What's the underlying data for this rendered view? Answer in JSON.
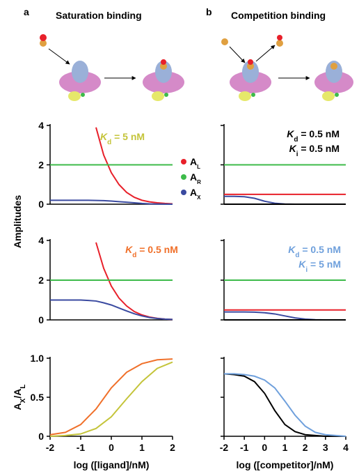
{
  "panels": [
    {
      "letter": "a",
      "title": "Saturation binding"
    },
    {
      "letter": "b",
      "title": "Competition binding"
    }
  ],
  "chart_data": [
    {
      "type": "line",
      "ylabel": "Amplitudes",
      "legend": "right",
      "xlim": [
        -2,
        2
      ],
      "ylim": [
        0,
        4
      ],
      "yticks": [
        0,
        2,
        4
      ],
      "show_ytick_labels": true,
      "x": [
        -2,
        -1.75,
        -1.5,
        -1.25,
        -1,
        -0.75,
        -0.5,
        -0.25,
        0,
        0.25,
        0.5,
        0.75,
        1,
        1.25,
        1.5,
        1.75,
        2
      ],
      "series": [
        {
          "name": "A",
          "sub": "L",
          "color": "#e8202a",
          "values": [
            null,
            null,
            null,
            null,
            null,
            null,
            3.9,
            2.5,
            1.6,
            1.0,
            0.6,
            0.35,
            0.2,
            0.12,
            0.07,
            0.04,
            0.02
          ]
        },
        {
          "name": "A",
          "sub": "R",
          "color": "#3dbb4a",
          "values": [
            2,
            2,
            2,
            2,
            2,
            2,
            2,
            2,
            2,
            2,
            2,
            2,
            2,
            2,
            2,
            2,
            2
          ]
        },
        {
          "name": "A",
          "sub": "X",
          "color": "#3a4aa0",
          "values": [
            0.2,
            0.2,
            0.2,
            0.2,
            0.2,
            0.2,
            0.19,
            0.18,
            0.16,
            0.13,
            0.1,
            0.07,
            0.04,
            0.02,
            0.01,
            0.005,
            0
          ]
        }
      ],
      "annotations": [
        {
          "text": "K",
          "sub": "d",
          "rest": " = 5 nM",
          "color": "#c4c43a"
        }
      ]
    },
    {
      "type": "line",
      "legend": false,
      "xlim": [
        -2,
        4
      ],
      "ylim": [
        0,
        4
      ],
      "yticks": [
        0,
        2,
        4
      ],
      "show_ytick_labels": false,
      "x": [
        -2,
        -1.5,
        -1,
        -0.5,
        0,
        0.5,
        1,
        1.5,
        2,
        2.5,
        3,
        3.5,
        4
      ],
      "series": [
        {
          "color": "#3dbb4a",
          "values": [
            2,
            2,
            2,
            2,
            2,
            2,
            2,
            2,
            2,
            2,
            2,
            2,
            2
          ]
        },
        {
          "color": "#e8202a",
          "values": [
            0.5,
            0.5,
            0.5,
            0.5,
            0.5,
            0.5,
            0.5,
            0.5,
            0.5,
            0.5,
            0.5,
            0.5,
            0.5
          ]
        },
        {
          "color": "#3a4aa0",
          "values": [
            0.4,
            0.4,
            0.38,
            0.3,
            0.15,
            0.05,
            0.01,
            0,
            0,
            0,
            0,
            0,
            0
          ]
        },
        {
          "color": "#000000",
          "values": [
            0,
            0,
            0,
            0,
            0,
            0,
            0,
            0,
            0,
            0,
            0,
            0,
            0
          ]
        }
      ],
      "annotations": [
        {
          "text": "K",
          "sub": "d",
          "rest": " = 0.5 nM",
          "color": "#000000"
        },
        {
          "text": "K",
          "sub": "i",
          "rest": " = 0.5 nM",
          "color": "#000000"
        }
      ]
    },
    {
      "type": "line",
      "legend": false,
      "xlim": [
        -2,
        2
      ],
      "ylim": [
        0,
        4
      ],
      "yticks": [
        0,
        2,
        4
      ],
      "show_ytick_labels": true,
      "x": [
        -2,
        -1.75,
        -1.5,
        -1.25,
        -1,
        -0.75,
        -0.5,
        -0.25,
        0,
        0.25,
        0.5,
        0.75,
        1,
        1.25,
        1.5,
        1.75,
        2
      ],
      "series": [
        {
          "color": "#e8202a",
          "values": [
            null,
            null,
            null,
            null,
            null,
            null,
            3.9,
            2.6,
            1.7,
            1.1,
            0.7,
            0.42,
            0.25,
            0.14,
            0.08,
            0.04,
            0.02
          ]
        },
        {
          "color": "#3dbb4a",
          "values": [
            2,
            2,
            2,
            2,
            2,
            2,
            2,
            2,
            2,
            2,
            2,
            2,
            2,
            2,
            2,
            2,
            2
          ]
        },
        {
          "color": "#3a4aa0",
          "values": [
            1,
            1,
            1,
            1,
            1,
            0.98,
            0.95,
            0.86,
            0.75,
            0.6,
            0.45,
            0.31,
            0.2,
            0.12,
            0.07,
            0.04,
            0.02
          ]
        }
      ],
      "annotations": [
        {
          "text": "K",
          "sub": "d",
          "rest": " = 0.5 nM",
          "color": "#f0702a"
        }
      ]
    },
    {
      "type": "line",
      "legend": false,
      "xlim": [
        -2,
        4
      ],
      "ylim": [
        0,
        4
      ],
      "yticks": [
        0,
        2,
        4
      ],
      "show_ytick_labels": false,
      "x": [
        -2,
        -1.5,
        -1,
        -0.5,
        0,
        0.5,
        1,
        1.5,
        2,
        2.5,
        3,
        3.5,
        4
      ],
      "series": [
        {
          "color": "#3dbb4a",
          "values": [
            2,
            2,
            2,
            2,
            2,
            2,
            2,
            2,
            2,
            2,
            2,
            2,
            2
          ]
        },
        {
          "color": "#e8202a",
          "values": [
            0.5,
            0.5,
            0.5,
            0.5,
            0.5,
            0.5,
            0.5,
            0.5,
            0.5,
            0.5,
            0.5,
            0.5,
            0.5
          ]
        },
        {
          "color": "#3a4aa0",
          "values": [
            0.4,
            0.4,
            0.4,
            0.39,
            0.36,
            0.3,
            0.2,
            0.1,
            0.04,
            0.01,
            0,
            0,
            0
          ]
        },
        {
          "color": "#000000",
          "values": [
            0,
            0,
            0,
            0,
            0,
            0,
            0,
            0,
            0,
            0,
            0,
            0,
            0
          ]
        }
      ],
      "annotations": [
        {
          "text": "K",
          "sub": "d",
          "rest": " = 0.5 nM",
          "color": "#6fa0dc"
        },
        {
          "text": "K",
          "sub": "i",
          "rest": " = 5 nM",
          "color": "#6fa0dc"
        }
      ]
    },
    {
      "type": "line",
      "legend": false,
      "ylabel_parts": [
        {
          "text": "A",
          "sub": "X"
        },
        {
          "text": "/A",
          "sub": "L"
        }
      ],
      "xlabel": "log ([ligand]/nM)",
      "xlim": [
        -2,
        2
      ],
      "xticks": [
        -2,
        -1,
        0,
        1,
        2
      ],
      "ylim": [
        0,
        1
      ],
      "yticks": [
        0,
        0.5,
        {
          "value": 1,
          "label": "1.0"
        }
      ],
      "show_ytick_labels": true,
      "x": [
        -2,
        -1.5,
        -1,
        -0.5,
        0,
        0.5,
        1,
        1.5,
        2
      ],
      "series": [
        {
          "color": "#f0702a",
          "values": [
            0.02,
            0.05,
            0.15,
            0.35,
            0.62,
            0.82,
            0.93,
            0.98,
            0.99
          ]
        },
        {
          "color": "#c4c43a",
          "values": [
            0,
            0.01,
            0.03,
            0.1,
            0.25,
            0.48,
            0.7,
            0.87,
            0.95
          ]
        }
      ]
    },
    {
      "type": "line",
      "legend": false,
      "xlabel": "log ([competitor]/nM)",
      "xlim": [
        -2,
        4
      ],
      "xticks": [
        -2,
        -1,
        0,
        1,
        2,
        3,
        4
      ],
      "ylim": [
        0,
        1
      ],
      "yticks": [
        0,
        0.5,
        1
      ],
      "show_ytick_labels": false,
      "x": [
        -2,
        -1.5,
        -1,
        -0.5,
        0,
        0.5,
        1,
        1.5,
        2,
        2.5,
        3,
        3.5,
        4
      ],
      "series": [
        {
          "color": "#000000",
          "values": [
            0.8,
            0.79,
            0.77,
            0.7,
            0.55,
            0.33,
            0.15,
            0.06,
            0.02,
            0.01,
            0,
            0,
            0
          ]
        },
        {
          "color": "#6fa0dc",
          "values": [
            0.8,
            0.8,
            0.79,
            0.77,
            0.72,
            0.62,
            0.45,
            0.27,
            0.13,
            0.05,
            0.02,
            0.01,
            0
          ]
        }
      ]
    }
  ]
}
